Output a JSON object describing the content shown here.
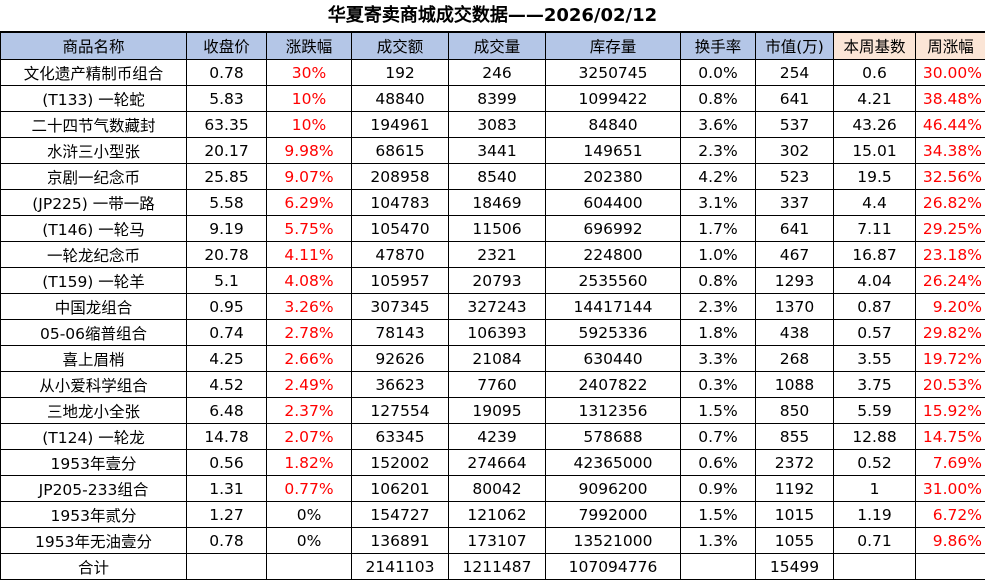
{
  "title": "华夏寄卖商城成交数据——2026/02/12",
  "columns": [
    "商品名称",
    "收盘价",
    "涨跌幅",
    "成交额",
    "成交量",
    "库存量",
    "换手率",
    "市值(万)",
    "本周基数",
    "周涨幅"
  ],
  "rows": [
    {
      "name": "文化遗产精制币组合",
      "close": "0.78",
      "change": "30%",
      "amount": "192",
      "volume": "246",
      "stock": "3250745",
      "turnover": "0.0%",
      "cap": "254",
      "base": "0.6",
      "weekly": "30.00%"
    },
    {
      "name": "(T133) 一轮蛇",
      "close": "5.83",
      "change": "10%",
      "amount": "48840",
      "volume": "8399",
      "stock": "1099422",
      "turnover": "0.8%",
      "cap": "641",
      "base": "4.21",
      "weekly": "38.48%"
    },
    {
      "name": "二十四节气数藏封",
      "close": "63.35",
      "change": "10%",
      "amount": "194961",
      "volume": "3083",
      "stock": "84840",
      "turnover": "3.6%",
      "cap": "537",
      "base": "43.26",
      "weekly": "46.44%"
    },
    {
      "name": "水浒三小型张",
      "close": "20.17",
      "change": "9.98%",
      "amount": "68615",
      "volume": "3441",
      "stock": "149651",
      "turnover": "2.3%",
      "cap": "302",
      "base": "15.01",
      "weekly": "34.38%"
    },
    {
      "name": "京剧一纪念币",
      "close": "25.85",
      "change": "9.07%",
      "amount": "208958",
      "volume": "8540",
      "stock": "202380",
      "turnover": "4.2%",
      "cap": "523",
      "base": "19.5",
      "weekly": "32.56%"
    },
    {
      "name": "(JP225) 一带一路",
      "close": "5.58",
      "change": "6.29%",
      "amount": "104783",
      "volume": "18469",
      "stock": "604400",
      "turnover": "3.1%",
      "cap": "337",
      "base": "4.4",
      "weekly": "26.82%"
    },
    {
      "name": "(T146) 一轮马",
      "close": "9.19",
      "change": "5.75%",
      "amount": "105470",
      "volume": "11506",
      "stock": "696992",
      "turnover": "1.7%",
      "cap": "641",
      "base": "7.11",
      "weekly": "29.25%"
    },
    {
      "name": "一轮龙纪念币",
      "close": "20.78",
      "change": "4.11%",
      "amount": "47870",
      "volume": "2321",
      "stock": "224800",
      "turnover": "1.0%",
      "cap": "467",
      "base": "16.87",
      "weekly": "23.18%"
    },
    {
      "name": "(T159) 一轮羊",
      "close": "5.1",
      "change": "4.08%",
      "amount": "105957",
      "volume": "20793",
      "stock": "2535560",
      "turnover": "0.8%",
      "cap": "1293",
      "base": "4.04",
      "weekly": "26.24%"
    },
    {
      "name": "中国龙组合",
      "close": "0.95",
      "change": "3.26%",
      "amount": "307345",
      "volume": "327243",
      "stock": "14417144",
      "turnover": "2.3%",
      "cap": "1370",
      "base": "0.87",
      "weekly": "9.20%"
    },
    {
      "name": "05-06缩普组合",
      "close": "0.74",
      "change": "2.78%",
      "amount": "78143",
      "volume": "106393",
      "stock": "5925336",
      "turnover": "1.8%",
      "cap": "438",
      "base": "0.57",
      "weekly": "29.82%"
    },
    {
      "name": "喜上眉梢",
      "close": "4.25",
      "change": "2.66%",
      "amount": "92626",
      "volume": "21084",
      "stock": "630440",
      "turnover": "3.3%",
      "cap": "268",
      "base": "3.55",
      "weekly": "19.72%"
    },
    {
      "name": "从小爱科学组合",
      "close": "4.52",
      "change": "2.49%",
      "amount": "36623",
      "volume": "7760",
      "stock": "2407822",
      "turnover": "0.3%",
      "cap": "1088",
      "base": "3.75",
      "weekly": "20.53%"
    },
    {
      "name": "三地龙小全张",
      "close": "6.48",
      "change": "2.37%",
      "amount": "127554",
      "volume": "19095",
      "stock": "1312356",
      "turnover": "1.5%",
      "cap": "850",
      "base": "5.59",
      "weekly": "15.92%"
    },
    {
      "name": "(T124) 一轮龙",
      "close": "14.78",
      "change": "2.07%",
      "amount": "63345",
      "volume": "4239",
      "stock": "578688",
      "turnover": "0.7%",
      "cap": "855",
      "base": "12.88",
      "weekly": "14.75%"
    },
    {
      "name": "1953年壹分",
      "close": "0.56",
      "change": "1.82%",
      "amount": "152002",
      "volume": "274664",
      "stock": "42365000",
      "turnover": "0.6%",
      "cap": "2372",
      "base": "0.52",
      "weekly": "7.69%"
    },
    {
      "name": "JP205-233组合",
      "close": "1.31",
      "change": "0.77%",
      "amount": "106201",
      "volume": "80042",
      "stock": "9096200",
      "turnover": "0.9%",
      "cap": "1192",
      "base": "1",
      "weekly": "31.00%"
    },
    {
      "name": "1953年贰分",
      "close": "1.27",
      "change": "0%",
      "amount": "154727",
      "volume": "121062",
      "stock": "7992000",
      "turnover": "1.5%",
      "cap": "1015",
      "base": "1.19",
      "weekly": "6.72%"
    },
    {
      "name": "1953年无油壹分",
      "close": "0.78",
      "change": "0%",
      "amount": "136891",
      "volume": "173107",
      "stock": "13521000",
      "turnover": "1.3%",
      "cap": "1055",
      "base": "0.71",
      "weekly": "9.86%"
    }
  ],
  "total": {
    "label": "合计",
    "amount": "2141103",
    "volume": "1211487",
    "stock": "107094776",
    "cap": "15499"
  },
  "colors": {
    "header_bg": "#b4c6e7",
    "header_highlight_bg": "#fbe5d6",
    "positive": "#ff0000",
    "border": "#000000"
  }
}
